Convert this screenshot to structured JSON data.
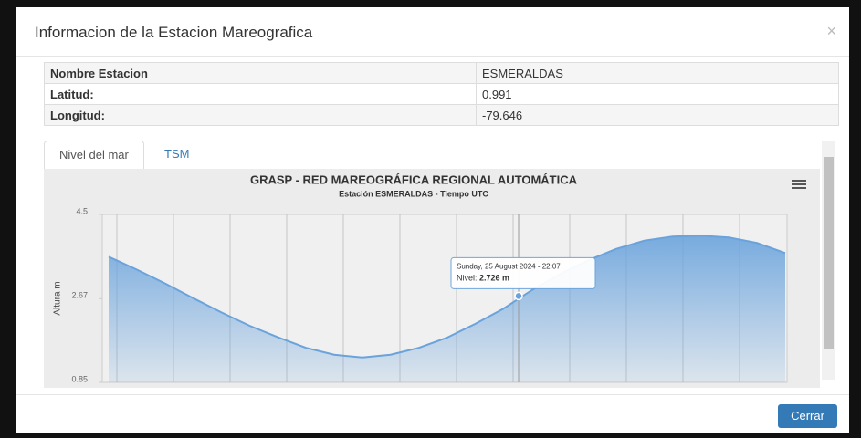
{
  "modal": {
    "title": "Informacion de la Estacion Mareografica",
    "close": "×",
    "button": "Cerrar"
  },
  "table": {
    "rows": [
      [
        "Nombre Estacion",
        "ESMERALDAS"
      ],
      [
        "Latitud:",
        "0.991"
      ],
      [
        "Longitud:",
        "-79.646"
      ]
    ]
  },
  "tabs": [
    "Nivel del mar",
    "TSM"
  ],
  "chart": {
    "type": "area",
    "title": "GRASP - RED MAREOGRÁFICA REGIONAL AUTOMÁTICA",
    "subtitle": "Estación ESMERALDAS - Tiempo UTC",
    "y_label": "Altura m",
    "color": "#6aa3dc",
    "values": [
      3.58,
      3.3,
      3.0,
      2.68,
      2.37,
      2.08,
      1.83,
      1.6,
      1.45,
      1.39,
      1.45,
      1.6,
      1.82,
      2.12,
      2.45,
      2.85,
      3.2,
      3.5,
      3.75,
      3.93,
      4.02,
      4.04,
      4.0,
      3.88,
      3.66
    ],
    "ylim": [
      0.85,
      4.5
    ],
    "yticks": [
      0.85,
      2.67,
      4.5
    ],
    "tooltip": {
      "date": "Sunday, 25 August 2024 - 22:07",
      "label": "Nivel:",
      "value": 2.726,
      "value_label": "2.726 m"
    }
  }
}
